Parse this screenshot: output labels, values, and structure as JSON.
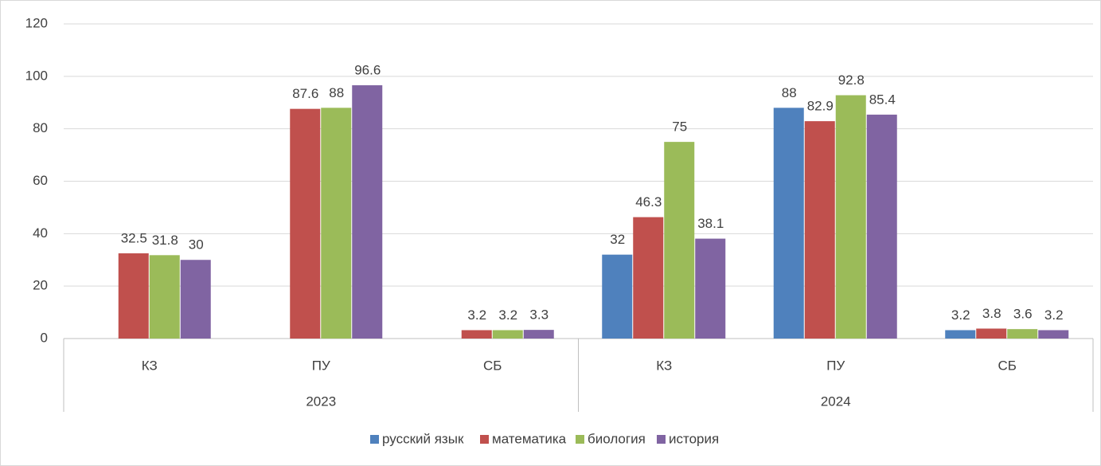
{
  "chart_data": {
    "type": "bar",
    "categories": [
      "КЗ",
      "ПУ",
      "СБ",
      "КЗ",
      "ПУ",
      "СБ"
    ],
    "groups": [
      "2023",
      "2024"
    ],
    "series": [
      {
        "name": "русский язык",
        "color": "#4f81bd",
        "values": [
          null,
          null,
          null,
          32,
          88,
          3.2
        ]
      },
      {
        "name": "математика",
        "color": "#c0504d",
        "values": [
          32.5,
          87.6,
          3.2,
          46.3,
          82.9,
          3.8
        ]
      },
      {
        "name": "биология",
        "color": "#9bbb59",
        "values": [
          31.8,
          88,
          3.2,
          75,
          92.8,
          3.6
        ]
      },
      {
        "name": "история",
        "color": "#8064a2",
        "values": [
          30,
          96.6,
          3.3,
          38.1,
          85.4,
          3.2
        ]
      }
    ],
    "ylim": [
      0,
      120
    ],
    "yticks": [
      0,
      20,
      40,
      60,
      80,
      100,
      120
    ],
    "grid": true,
    "legend": "bottom"
  }
}
